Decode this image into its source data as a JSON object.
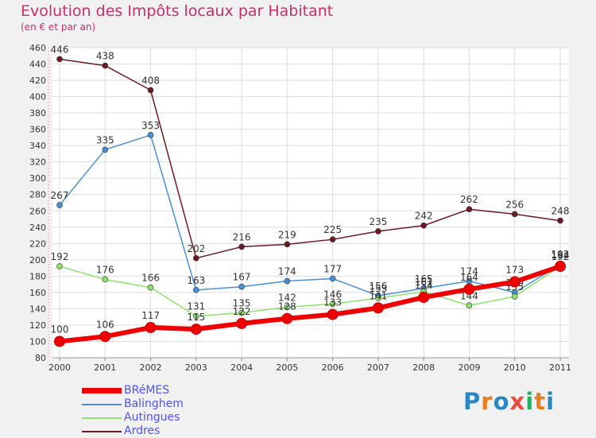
{
  "header": {
    "title": "Evolution des Impôts locaux par Habitant",
    "subtitle": "(en € et par an)"
  },
  "logo": {
    "text": "Proxiti",
    "letters": [
      "P",
      "r",
      "o",
      "x",
      "i",
      "t",
      "i"
    ],
    "letter_colors": [
      "#2e86c1",
      "#e67e22",
      "#2e86c1",
      "#e74c3c",
      "#27ae60",
      "#e67e22",
      "#2e86c1"
    ]
  },
  "chart_data": {
    "type": "line",
    "title": "Evolution des Impôts locaux par Habitant",
    "subtitle": "(en € et par an)",
    "xlabel": "",
    "ylabel": "",
    "categories": [
      "2000",
      "2001",
      "2002",
      "2003",
      "2004",
      "2005",
      "2006",
      "2007",
      "2008",
      "2009",
      "2010",
      "2011"
    ],
    "ylim": [
      80,
      460
    ],
    "yticks": [
      80,
      100,
      120,
      140,
      160,
      180,
      200,
      220,
      240,
      260,
      280,
      300,
      320,
      340,
      360,
      380,
      400,
      420,
      440,
      460
    ],
    "grid": true,
    "legend_position": "bottom-left",
    "series": [
      {
        "name": "Ardres",
        "color": "#6b1a24",
        "emphasis": false,
        "values": [
          446,
          438,
          408,
          202,
          216,
          219,
          225,
          235,
          242,
          262,
          256,
          248
        ],
        "labels": [
          "446",
          "438",
          "408",
          "202",
          "216",
          "219",
          "225",
          "235",
          "242",
          "262",
          "256",
          "248"
        ]
      },
      {
        "name": "Balinghem",
        "color": "#4a8fd1",
        "emphasis": false,
        "values": [
          267,
          335,
          353,
          163,
          167,
          174,
          177,
          156,
          165,
          174,
          160,
          194
        ],
        "labels": [
          "267",
          "335",
          "353",
          "163",
          "167",
          "174",
          "177",
          "156",
          "165",
          "174",
          "160",
          "194"
        ]
      },
      {
        "name": "Autingues",
        "color": "#90e070",
        "emphasis": false,
        "values": [
          192,
          176,
          166,
          131,
          135,
          142,
          146,
          153,
          161,
          144,
          155,
          192
        ],
        "labels": [
          "192",
          "176",
          "166",
          "131",
          "135",
          "142",
          "146",
          "153",
          "161",
          "144",
          "155",
          "192"
        ]
      },
      {
        "name": "BRéMES",
        "color": "#ee0000",
        "emphasis": true,
        "values": [
          100,
          106,
          117,
          115,
          122,
          128,
          133,
          141,
          154,
          164,
          173,
          192
        ],
        "labels": [
          "100",
          "106",
          "117",
          "115",
          "122",
          "128",
          "133",
          "141",
          "154",
          "164",
          "173",
          "192"
        ]
      }
    ],
    "legend": [
      "BRéMES",
      "Balinghem",
      "Autingues",
      "Ardres"
    ]
  }
}
